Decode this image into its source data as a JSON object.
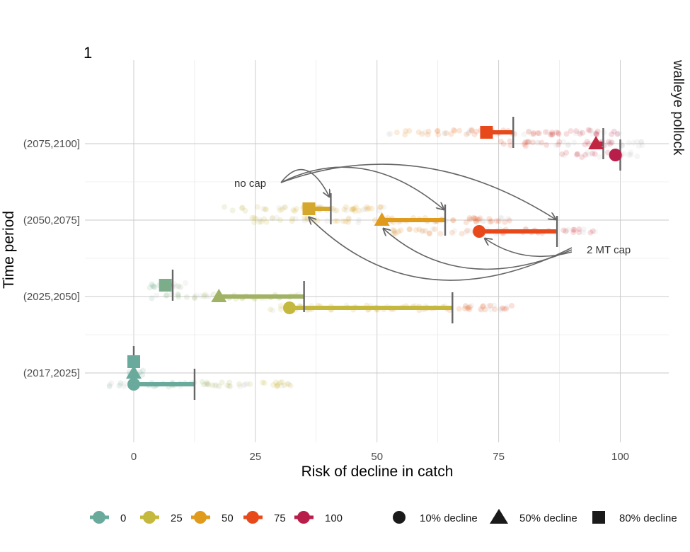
{
  "chart_data": {
    "type": "scatter",
    "panel_tag": "1",
    "facet_label": "walleye pollock",
    "xlabel": "Risk of decline in catch",
    "ylabel": "Time period",
    "xlim": [
      -10,
      112
    ],
    "x_ticks": [
      0,
      25,
      50,
      75,
      100
    ],
    "categories": [
      "(2017,2025]",
      "(2025,2050]",
      "(2050,2075]",
      "(2075,2100]"
    ],
    "grid": true,
    "legend_position": "bottom",
    "colors": {
      "0": "#6aaa9d",
      "25": "#c4b83e",
      "50": "#e09b1c",
      "75": "#e8491b",
      "100": "#b81e4a",
      "line": "#666666",
      "grid": "#c9c9c9",
      "jitter_gray": "#b5b5b5"
    },
    "color_legend": {
      "items": [
        {
          "label": "0",
          "color": "#6aaa9d"
        },
        {
          "label": "25",
          "color": "#c4b83e"
        },
        {
          "label": "50",
          "color": "#e09b1c"
        },
        {
          "label": "75",
          "color": "#e8491b"
        },
        {
          "label": "100",
          "color": "#b81e4a"
        }
      ]
    },
    "shape_legend": {
      "items": [
        {
          "label": "10% decline",
          "shape": "circle"
        },
        {
          "label": "50% decline",
          "shape": "triangle"
        },
        {
          "label": "80% decline",
          "shape": "square"
        }
      ]
    },
    "series": [
      {
        "period": "(2017,2025]",
        "threshold": "10% decline",
        "shape": "circle",
        "value": 0,
        "cap": 12.5,
        "color_value": 0
      },
      {
        "period": "(2017,2025]",
        "threshold": "50% decline",
        "shape": "triangle",
        "value": 0,
        "cap": 0,
        "color_value": 0
      },
      {
        "period": "(2017,2025]",
        "threshold": "80% decline",
        "shape": "square",
        "value": 0,
        "cap": 0,
        "color_value": 0
      },
      {
        "period": "(2025,2050]",
        "threshold": "10% decline",
        "shape": "circle",
        "value": 32,
        "cap": 65.5,
        "color_value": 25
      },
      {
        "period": "(2025,2050]",
        "threshold": "50% decline",
        "shape": "triangle",
        "value": 17.5,
        "cap": 35,
        "color_value": 15
      },
      {
        "period": "(2025,2050]",
        "threshold": "80% decline",
        "shape": "square",
        "value": 6.5,
        "cap": 8,
        "color_value": 5
      },
      {
        "period": "(2050,2075]",
        "threshold": "10% decline",
        "shape": "circle",
        "value": 71,
        "cap": 87,
        "color_value": 75
      },
      {
        "period": "(2050,2075]",
        "threshold": "50% decline",
        "shape": "triangle",
        "value": 51,
        "cap": 64,
        "color_value": 50
      },
      {
        "period": "(2050,2075]",
        "threshold": "80% decline",
        "shape": "square",
        "value": 36,
        "cap": 40.5,
        "color_value": 40
      },
      {
        "period": "(2075,2100]",
        "threshold": "10% decline",
        "shape": "circle",
        "value": 99,
        "cap": 100,
        "color_value": 100
      },
      {
        "period": "(2075,2100]",
        "threshold": "50% decline",
        "shape": "triangle",
        "value": 95,
        "cap": 96.5,
        "color_value": 95
      },
      {
        "period": "(2075,2100]",
        "threshold": "80% decline",
        "shape": "square",
        "value": 72.5,
        "cap": 78,
        "color_value": 75
      }
    ],
    "jitter_ranges": [
      {
        "period": "(2017,2025]",
        "threshold": "10% decline",
        "from": -5,
        "to": 34
      },
      {
        "period": "(2017,2025]",
        "threshold": "50% decline",
        "from": -1,
        "to": 2
      },
      {
        "period": "(2017,2025]",
        "threshold": "80% decline",
        "from": -1,
        "to": 2
      },
      {
        "period": "(2025,2050]",
        "threshold": "10% decline",
        "from": 28,
        "to": 78
      },
      {
        "period": "(2025,2050]",
        "threshold": "50% decline",
        "from": 3,
        "to": 34
      },
      {
        "period": "(2025,2050]",
        "threshold": "80% decline",
        "from": 3,
        "to": 11
      },
      {
        "period": "(2050,2075]",
        "threshold": "10% decline",
        "from": 53,
        "to": 95
      },
      {
        "period": "(2050,2075]",
        "threshold": "50% decline",
        "from": 24,
        "to": 78
      },
      {
        "period": "(2050,2075]",
        "threshold": "80% decline",
        "from": 18,
        "to": 52
      },
      {
        "period": "(2075,2100]",
        "threshold": "10% decline",
        "from": 88,
        "to": 104
      },
      {
        "period": "(2075,2100]",
        "threshold": "50% decline",
        "from": 75,
        "to": 105
      },
      {
        "period": "(2075,2100]",
        "threshold": "80% decline",
        "from": 52,
        "to": 100
      }
    ],
    "annotations": [
      {
        "text": "no cap",
        "points_to": "cap ends (2050,2075]"
      },
      {
        "text": "2 MT cap",
        "points_to": "point estimates (2050,2075]"
      }
    ]
  }
}
